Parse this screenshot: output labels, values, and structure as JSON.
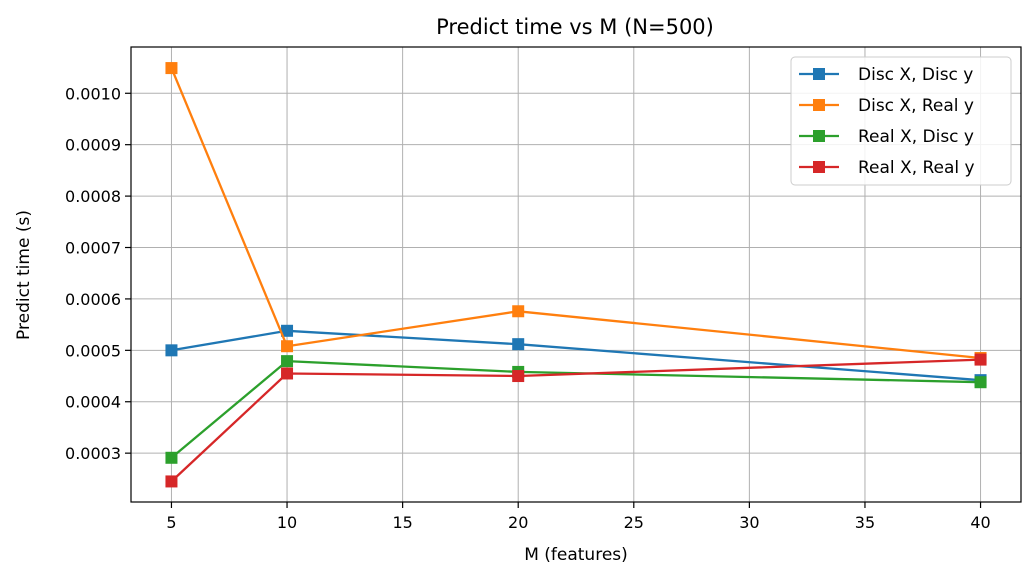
{
  "chart_data": {
    "type": "line",
    "title": "Predict time vs M (N=500)",
    "xlabel": "M (features)",
    "ylabel": "Predict time (s)",
    "x": [
      5,
      10,
      20,
      40
    ],
    "xlim": [
      3.25,
      41.75
    ],
    "ylim": [
      0.000205,
      0.00109
    ],
    "xticks": [
      5,
      10,
      15,
      20,
      25,
      30,
      35,
      40
    ],
    "yticks": [
      0.0003,
      0.0004,
      0.0005,
      0.0006,
      0.0007,
      0.0008,
      0.0009,
      0.001
    ],
    "ytick_labels": [
      "0.0003",
      "0.0004",
      "0.0005",
      "0.0006",
      "0.0007",
      "0.0008",
      "0.0009",
      "0.0010"
    ],
    "grid": true,
    "legend_position": "top-right",
    "marker": "square",
    "series": [
      {
        "name": "Disc X, Disc y",
        "color": "#1f77b4",
        "values": [
          0.0005,
          0.000538,
          0.000512,
          0.000442
        ]
      },
      {
        "name": "Disc X, Real y",
        "color": "#ff7f0e",
        "values": [
          0.001049,
          0.000508,
          0.000576,
          0.000485
        ]
      },
      {
        "name": "Real X, Disc y",
        "color": "#2ca02c",
        "values": [
          0.000291,
          0.000479,
          0.000458,
          0.000438
        ]
      },
      {
        "name": "Real X, Real y",
        "color": "#d62728",
        "values": [
          0.000245,
          0.000455,
          0.00045,
          0.000482
        ]
      }
    ]
  }
}
